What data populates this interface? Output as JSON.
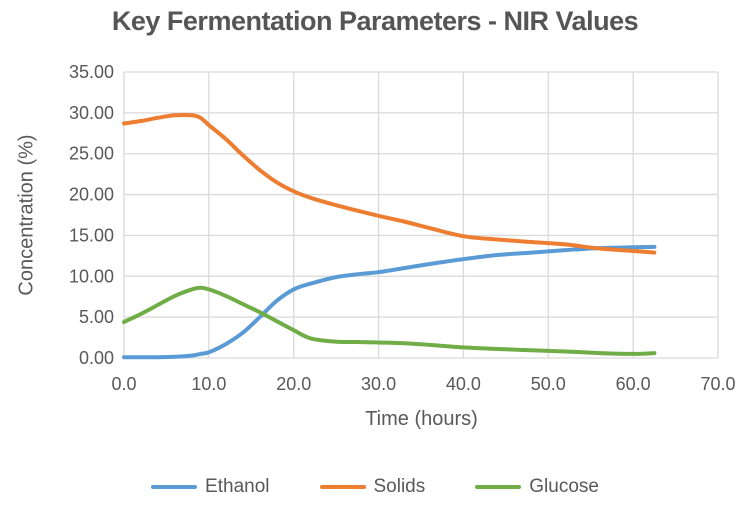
{
  "chart_data": {
    "type": "line",
    "title": "Key Fermentation Parameters - NIR Values",
    "xlabel": "Time (hours)",
    "ylabel": "Concentration (%)",
    "xlim": [
      0,
      70
    ],
    "ylim": [
      0,
      35
    ],
    "x_tick_labels": [
      "0.0",
      "10.0",
      "20.0",
      "30.0",
      "40.0",
      "50.0",
      "60.0",
      "70.0"
    ],
    "y_tick_labels": [
      "0.00",
      "5.00",
      "10.00",
      "15.00",
      "20.00",
      "25.00",
      "30.00",
      "35.00"
    ],
    "grid": true,
    "legend_position": "bottom",
    "text_color": "#595959",
    "gridline_color": "#D9D9D9",
    "x": [
      0,
      2,
      4,
      6,
      8,
      9,
      10,
      12,
      14,
      16,
      18,
      20,
      22,
      25,
      28,
      30,
      33,
      36,
      40,
      44,
      48,
      52,
      56,
      60,
      62.5
    ],
    "series": [
      {
        "name": "Ethanol",
        "color": "#5B9BD5",
        "values": [
          0.1,
          0.1,
          0.1,
          0.15,
          0.3,
          0.5,
          0.7,
          1.7,
          3.1,
          5.0,
          7.0,
          8.4,
          9.1,
          9.9,
          10.3,
          10.5,
          11.0,
          11.5,
          12.1,
          12.6,
          12.9,
          13.2,
          13.45,
          13.55,
          13.6
        ]
      },
      {
        "name": "Solids",
        "color": "#ED7D31",
        "values": [
          28.7,
          29.0,
          29.4,
          29.7,
          29.7,
          29.4,
          28.5,
          26.8,
          24.8,
          23.0,
          21.5,
          20.4,
          19.6,
          18.7,
          17.9,
          17.4,
          16.7,
          15.9,
          14.9,
          14.5,
          14.2,
          13.9,
          13.4,
          13.1,
          12.9
        ]
      },
      {
        "name": "Glucose",
        "color": "#70AD47",
        "values": [
          4.4,
          5.4,
          6.5,
          7.6,
          8.4,
          8.6,
          8.4,
          7.6,
          6.6,
          5.6,
          4.5,
          3.4,
          2.4,
          2.0,
          1.95,
          1.9,
          1.8,
          1.6,
          1.3,
          1.1,
          0.95,
          0.8,
          0.6,
          0.5,
          0.6
        ]
      }
    ]
  }
}
